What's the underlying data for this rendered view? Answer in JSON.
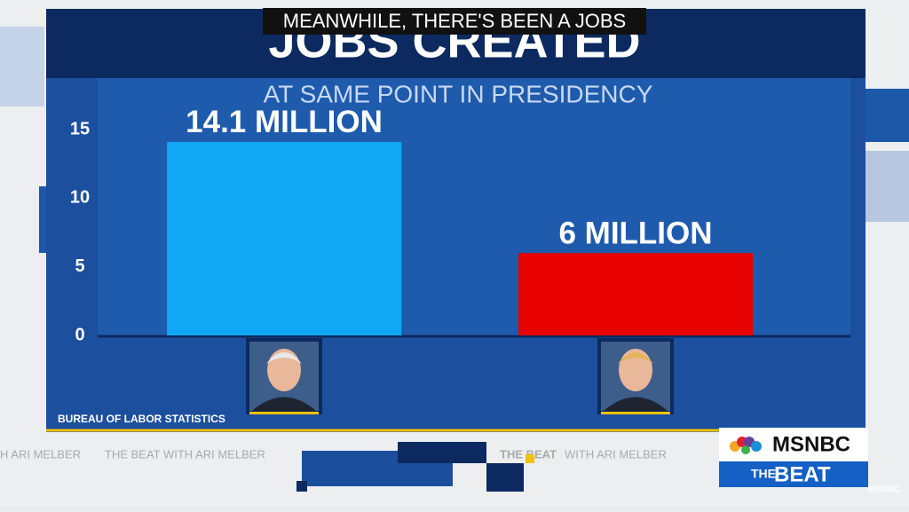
{
  "chart_data": {
    "type": "bar",
    "title": "JOBS CREATED",
    "subtitle": "AT SAME POINT IN PRESIDENCY",
    "source": "BUREAU OF LABOR STATISTICS",
    "categories": [
      null,
      null
    ],
    "values": [
      14.1,
      6
    ],
    "value_labels": [
      "14.1 MILLION",
      "6 MILLION"
    ],
    "colors": [
      "#10a8f5",
      "#e60000"
    ],
    "ylim": [
      0,
      15
    ],
    "yticks": [
      0,
      5,
      10,
      15
    ],
    "grid": false
  },
  "caption": "MEANWHILE, THERE'S BEEN A JOBS",
  "ticker": [
    "H ARI MELBER",
    "THE BEAT WITH ARI MELBER",
    "THE BEAT",
    "WITH ARI MELBER"
  ],
  "branding": {
    "network": "MSNBC",
    "show_prefix": "THE",
    "show": "BEAT",
    "corner": "MSNBC"
  }
}
